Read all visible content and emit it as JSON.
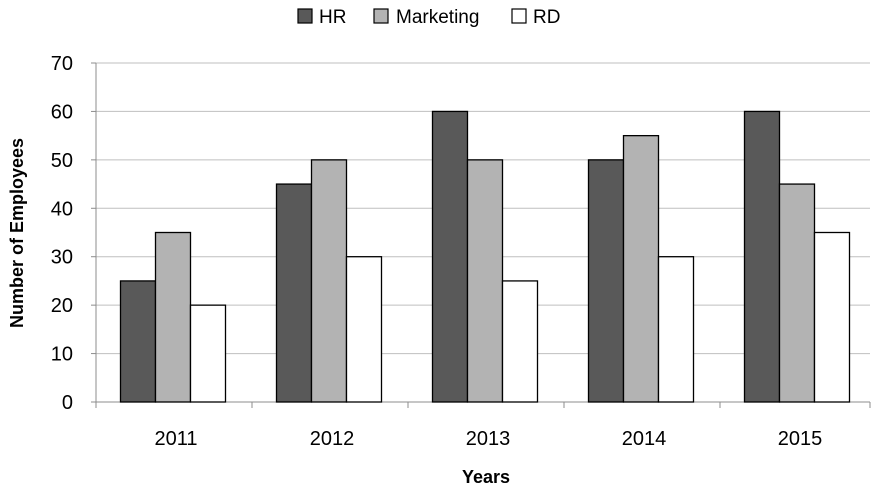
{
  "chart_data": {
    "type": "bar",
    "title": "",
    "xlabel": "Years",
    "ylabel": "Number of Employees",
    "categories": [
      "2011",
      "2012",
      "2013",
      "2014",
      "2015"
    ],
    "series": [
      {
        "name": "HR",
        "values": [
          25,
          45,
          60,
          50,
          60
        ],
        "color": "#595959"
      },
      {
        "name": "Marketing",
        "values": [
          35,
          50,
          50,
          55,
          45
        ],
        "color": "#b3b3b3"
      },
      {
        "name": "RD",
        "values": [
          20,
          30,
          25,
          30,
          35
        ],
        "color": "#ffffff"
      }
    ],
    "ylim": [
      0,
      70
    ],
    "yticks": [
      0,
      10,
      20,
      30,
      40,
      50,
      60,
      70
    ],
    "grid": true,
    "legend_position": "top-center"
  }
}
